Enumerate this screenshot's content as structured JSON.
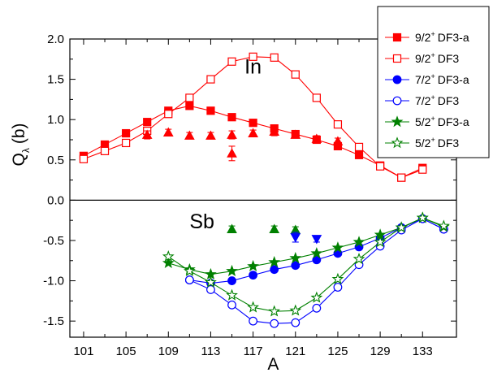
{
  "chart_data": {
    "type": "scatter",
    "xlabel": "A",
    "ylabel": "Q",
    "ylabel_sub": "λ",
    "ylabel_unit": "(b)",
    "xlim": [
      99.7,
      136.2
    ],
    "ylim": [
      -1.7,
      2.0
    ],
    "xticks": [
      101,
      105,
      109,
      113,
      117,
      121,
      125,
      129,
      133
    ],
    "yticks": [
      -1.5,
      -1.0,
      -0.5,
      0.0,
      0.5,
      1.0,
      1.5,
      2.0
    ],
    "ytick_labels": [
      "-1.5",
      "-1.0",
      "-0.5",
      "0.0",
      "0.5",
      "1.0",
      "1.5",
      "2.0"
    ],
    "zero_line": true,
    "panel_labels": [
      {
        "text": "In",
        "x": 116.2,
        "y": 1.57
      },
      {
        "text": "Sb",
        "x": 111.0,
        "y": -0.35
      }
    ],
    "colors": {
      "red": "#ff0000",
      "blue": "#0000ff",
      "green": "#008000"
    },
    "legend": {
      "placement": "top-right",
      "entries": [
        {
          "spin": "9/2",
          "sup": "+",
          "model": "DF3-a",
          "color": "#ff0000",
          "marker": "square",
          "filled": true
        },
        {
          "spin": "9/2",
          "sup": "+",
          "model": "DF3",
          "color": "#ff0000",
          "marker": "square",
          "filled": false
        },
        {
          "spin": "7/2",
          "sup": "+",
          "model": "DF3-a",
          "color": "#0000ff",
          "marker": "circle",
          "filled": true
        },
        {
          "spin": "7/2",
          "sup": "+",
          "model": "DF3",
          "color": "#0000ff",
          "marker": "circle",
          "filled": false
        },
        {
          "spin": "5/2",
          "sup": "+",
          "model": "DF3-a",
          "color": "#008000",
          "marker": "star",
          "filled": true
        },
        {
          "spin": "5/2",
          "sup": "+",
          "model": "DF3",
          "color": "#008000",
          "marker": "star",
          "filled": false
        }
      ]
    },
    "series": [
      {
        "name": "9/2+ DF3-a",
        "color": "#ff0000",
        "marker": "square",
        "filled": true,
        "x": [
          101,
          103,
          105,
          107,
          109,
          111,
          113,
          115,
          117,
          119,
          121,
          123,
          125,
          127,
          129,
          131,
          133
        ],
        "y": [
          0.55,
          0.69,
          0.83,
          0.97,
          1.11,
          1.17,
          1.11,
          1.03,
          0.96,
          0.89,
          0.82,
          0.75,
          0.67,
          0.56,
          0.43,
          0.28,
          0.4
        ]
      },
      {
        "name": "9/2+ DF3",
        "color": "#ff0000",
        "marker": "square",
        "filled": false,
        "x": [
          101,
          103,
          105,
          107,
          109,
          111,
          113,
          115,
          117,
          119,
          121,
          123,
          125,
          127,
          129,
          131,
          133
        ],
        "y": [
          0.51,
          0.61,
          0.71,
          0.86,
          1.07,
          1.27,
          1.5,
          1.72,
          1.78,
          1.77,
          1.56,
          1.27,
          0.94,
          0.66,
          0.42,
          0.28,
          0.38
        ]
      },
      {
        "name": "7/2+ DF3-a",
        "color": "#0000ff",
        "marker": "circle",
        "filled": true,
        "x": [
          111,
          113,
          115,
          117,
          119,
          121,
          123,
          125,
          127,
          129,
          131,
          133,
          135
        ],
        "y": [
          -0.99,
          -1.03,
          -1.0,
          -0.93,
          -0.86,
          -0.81,
          -0.74,
          -0.66,
          -0.58,
          -0.47,
          -0.34,
          -0.23,
          -0.36
        ]
      },
      {
        "name": "7/2+ DF3",
        "color": "#0000ff",
        "marker": "circle",
        "filled": false,
        "x": [
          111,
          113,
          115,
          117,
          119,
          121,
          123,
          125,
          127,
          129,
          131,
          133,
          135
        ],
        "y": [
          -0.99,
          -1.11,
          -1.3,
          -1.5,
          -1.53,
          -1.52,
          -1.34,
          -1.08,
          -0.8,
          -0.57,
          -0.37,
          -0.23,
          -0.36
        ]
      },
      {
        "name": "5/2+ DF3-a",
        "color": "#008000",
        "marker": "star",
        "filled": true,
        "x": [
          109,
          111,
          113,
          115,
          117,
          119,
          121,
          123,
          125,
          127,
          129,
          131,
          133,
          135
        ],
        "y": [
          -0.78,
          -0.86,
          -0.92,
          -0.88,
          -0.82,
          -0.77,
          -0.72,
          -0.66,
          -0.59,
          -0.52,
          -0.43,
          -0.34,
          -0.22,
          -0.33
        ]
      },
      {
        "name": "5/2+ DF3",
        "color": "#008000",
        "marker": "star",
        "filled": false,
        "x": [
          109,
          111,
          113,
          115,
          117,
          119,
          121,
          123,
          125,
          127,
          129,
          131,
          133,
          135
        ],
        "y": [
          -0.7,
          -0.88,
          -1.02,
          -1.18,
          -1.33,
          -1.38,
          -1.37,
          -1.21,
          -0.98,
          -0.73,
          -0.52,
          -0.34,
          -0.22,
          -0.32
        ]
      }
    ],
    "experimental": [
      {
        "color": "#ff0000",
        "marker": "triangle-up",
        "points": [
          {
            "x": 107,
            "y": 0.81,
            "err": 0.05
          },
          {
            "x": 109,
            "y": 0.84,
            "err": 0.04
          },
          {
            "x": 111,
            "y": 0.8,
            "err": 0.04
          },
          {
            "x": 113,
            "y": 0.8,
            "err": 0.04
          },
          {
            "x": 115,
            "y": 0.81,
            "err": 0.05
          },
          {
            "x": 115,
            "y": 0.58,
            "err": 0.09
          },
          {
            "x": 117,
            "y": 0.83,
            "err": 0.04
          },
          {
            "x": 119,
            "y": 0.85,
            "err": 0.05
          },
          {
            "x": 121,
            "y": 0.81,
            "err": 0.04
          },
          {
            "x": 123,
            "y": 0.76,
            "err": 0.04
          },
          {
            "x": 125,
            "y": 0.73,
            "err": 0.04
          }
        ]
      },
      {
        "color": "#008000",
        "marker": "triangle-up",
        "points": [
          {
            "x": 115,
            "y": -0.36,
            "err": 0.04
          },
          {
            "x": 119,
            "y": -0.36,
            "err": 0.04
          },
          {
            "x": 121,
            "y": -0.37,
            "err": 0.04
          }
        ]
      },
      {
        "color": "#0000ff",
        "marker": "triangle-down",
        "points": [
          {
            "x": 121,
            "y": -0.46,
            "err": 0.06
          },
          {
            "x": 123,
            "y": -0.48,
            "err": 0.04
          }
        ]
      }
    ]
  }
}
